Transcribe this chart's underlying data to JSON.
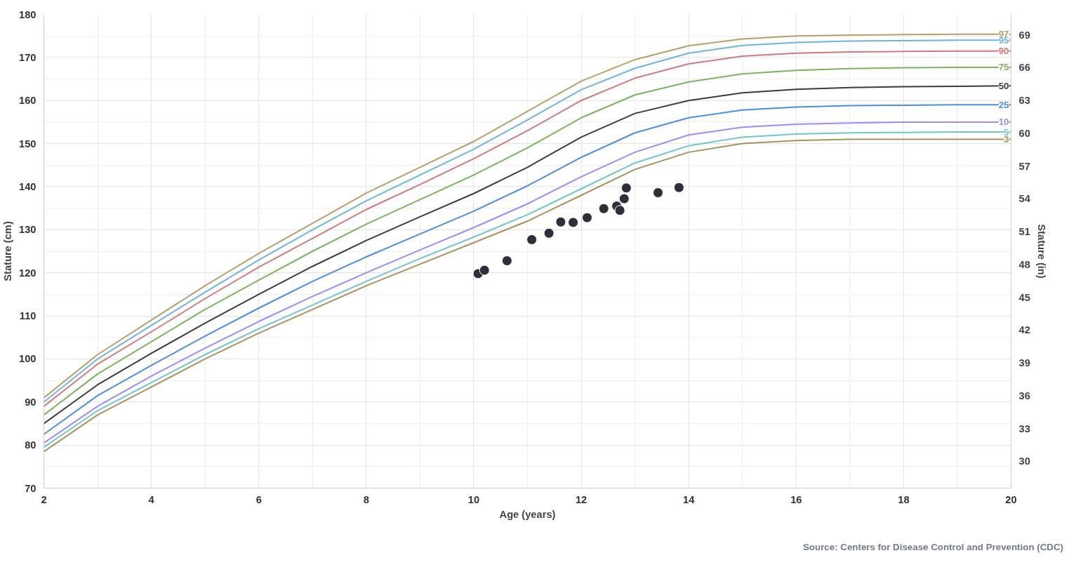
{
  "chart_data": {
    "type": "line",
    "xlabel": "Age (years)",
    "ylabel": "Stature (cm)",
    "y2label": "Stature (in)",
    "x": [
      2,
      3,
      4,
      5,
      6,
      7,
      8,
      9,
      10,
      11,
      12,
      13,
      14,
      15,
      16,
      17,
      18,
      19,
      20
    ],
    "xlim": [
      2,
      20
    ],
    "xticks": [
      2,
      {
        "value": 3,
        "label": null
      },
      4,
      {
        "value": 5,
        "label": null
      },
      6,
      {
        "value": 7,
        "label": null
      },
      8,
      {
        "value": 9,
        "label": null
      },
      10,
      {
        "value": 11,
        "label": null
      },
      12,
      {
        "value": 13,
        "label": null
      },
      14,
      {
        "value": 15,
        "label": null
      },
      16,
      {
        "value": 17,
        "label": null
      },
      18,
      {
        "value": 19,
        "label": null
      },
      20
    ],
    "ylim": [
      70,
      180
    ],
    "yticks": [
      70,
      {
        "value": 75,
        "label": null
      },
      80,
      {
        "value": 85,
        "label": null
      },
      90,
      {
        "value": 95,
        "label": null
      },
      100,
      {
        "value": 105,
        "label": null
      },
      110,
      {
        "value": 115,
        "label": null
      },
      120,
      {
        "value": 125,
        "label": null
      },
      130,
      {
        "value": 135,
        "label": null
      },
      140,
      {
        "value": 145,
        "label": null
      },
      150,
      {
        "value": 155,
        "label": null
      },
      160,
      {
        "value": 165,
        "label": null
      },
      170,
      {
        "value": 175,
        "label": null
      },
      180
    ],
    "y2lim": [
      27.56,
      70.87
    ],
    "y2ticks": [
      30,
      33,
      36,
      39,
      42,
      45,
      48,
      51,
      54,
      57,
      60,
      63,
      66,
      69
    ],
    "grid": true,
    "marker": "none",
    "line_style": "solid",
    "series": [
      {
        "name": "97",
        "color": "#b5a06a",
        "values": [
          91,
          101,
          109,
          117,
          124.5,
          131.5,
          138.5,
          144.5,
          150.5,
          157.5,
          164.5,
          169.5,
          172.7,
          174.3,
          175,
          175.2,
          175.3,
          175.4,
          175.4
        ]
      },
      {
        "name": "95",
        "color": "#6cb4e4",
        "values": [
          90,
          100,
          107.8,
          115.5,
          123,
          130,
          136.7,
          142.7,
          148.7,
          155.5,
          162.5,
          167.5,
          171,
          172.8,
          173.5,
          173.8,
          173.9,
          174,
          174
        ]
      },
      {
        "name": "90",
        "color": "#d07a7e",
        "values": [
          89,
          98.8,
          106.3,
          114,
          121.3,
          128,
          134.7,
          140.5,
          146.5,
          153,
          160,
          165.2,
          168.5,
          170.3,
          171,
          171.3,
          171.4,
          171.5,
          171.5
        ]
      },
      {
        "name": "75",
        "color": "#7ab55c",
        "values": [
          87,
          96.5,
          104,
          111.5,
          118.3,
          125,
          131.3,
          137,
          142.7,
          149,
          156,
          161.3,
          164.3,
          166.2,
          167,
          167.4,
          167.6,
          167.7,
          167.7
        ]
      },
      {
        "name": "50",
        "color": "#3c3c3c",
        "values": [
          85,
          94,
          101.3,
          108.3,
          115,
          121.5,
          127.5,
          133,
          138.4,
          144.5,
          151.5,
          157,
          160,
          161.8,
          162.6,
          163,
          163.2,
          163.3,
          163.4
        ]
      },
      {
        "name": "25",
        "color": "#4a8fe0",
        "values": [
          82.5,
          91.5,
          98.5,
          105.3,
          111.8,
          118,
          123.7,
          129,
          134.3,
          140.2,
          146.8,
          152.5,
          156,
          157.8,
          158.5,
          158.8,
          158.9,
          159,
          159
        ]
      },
      {
        "name": "10",
        "color": "#9a8cff",
        "values": [
          80.5,
          89,
          96,
          102.5,
          108.7,
          114.5,
          120,
          125.3,
          130.5,
          136,
          142.3,
          148,
          152,
          153.8,
          154.5,
          154.8,
          155,
          155,
          155
        ]
      },
      {
        "name": "5",
        "color": "#6fc6c8",
        "values": [
          79.5,
          88,
          94.5,
          101,
          107,
          112.5,
          118,
          123.3,
          128.3,
          133.5,
          139.5,
          145.5,
          149.5,
          151.5,
          152.2,
          152.5,
          152.6,
          152.7,
          152.7
        ]
      },
      {
        "name": "3",
        "color": "#a8925a",
        "values": [
          78.5,
          87,
          93.5,
          100,
          106,
          111.5,
          117,
          122,
          127,
          132,
          138,
          144,
          148,
          150,
          150.7,
          151,
          151,
          151,
          151
        ]
      },
      {
        "type": "scatter",
        "marker": "circle",
        "color": "#2d3039",
        "x": [
          10.08,
          10.2,
          10.62,
          11.08,
          11.4,
          11.62,
          11.85,
          12.11,
          12.42,
          12.66,
          12.72,
          12.8,
          12.84,
          13.43,
          13.82
        ],
        "values": [
          119.8,
          120.6,
          122.8,
          127.7,
          129.2,
          131.8,
          131.7,
          132.8,
          134.9,
          135.5,
          134.5,
          137.2,
          139.7,
          138.6,
          139.8
        ]
      }
    ],
    "annotations": [
      "Source: Centers for Disease Control and Prevention (CDC)"
    ]
  }
}
